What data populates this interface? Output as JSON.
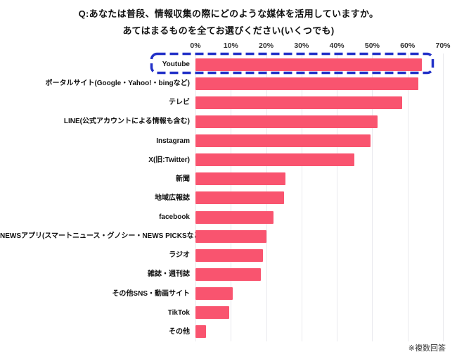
{
  "title": {
    "line1": "Q:あなたは普段、情報収集の際にどのような媒体を活用していますか。",
    "line2": "あてはまるものを全てお選びください(いくつでも)"
  },
  "note": "※複数回答",
  "chart_data": {
    "type": "bar",
    "orientation": "horizontal",
    "title": "",
    "xlabel": "",
    "ylabel": "",
    "xlim": [
      0,
      70
    ],
    "x_tick_labels": [
      "0%",
      "10%",
      "20%",
      "30%",
      "40%",
      "50%",
      "60%",
      "70%"
    ],
    "grid": true,
    "legend": "none",
    "categories": [
      "Youtube",
      "ポータルサイト(Google・Yahoo!・bingなど)",
      "テレビ",
      "LINE(公式アカウントによる情報も含む)",
      "Instagram",
      "X(旧:Twitter)",
      "新聞",
      "地域広報誌",
      "facebook",
      "NEWSアプリ(スマートニュース・グノシー・NEWS PICKSなど)",
      "ラジオ",
      "雑誌・週刊誌",
      "その他SNS・動画サイト",
      "TikTok",
      "その他"
    ],
    "values": [
      64,
      63,
      58.5,
      51.5,
      49.5,
      45,
      25.5,
      25,
      22,
      20,
      19,
      18.5,
      10.5,
      9.5,
      3
    ],
    "unit": "%",
    "bar_color": "#F9546F",
    "gridline_color": "#E9E9ED",
    "highlight": {
      "category": "Youtube",
      "style": "dashed-rounded-rect",
      "color": "#2231C8"
    }
  }
}
